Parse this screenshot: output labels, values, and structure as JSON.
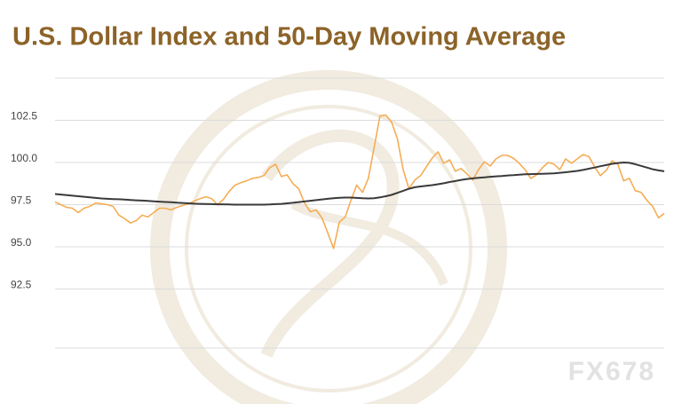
{
  "chart_data": {
    "type": "line",
    "title": "U.S. Dollar Index and 50-Day Moving Average",
    "watermark": "FX678",
    "ylim": [
      89,
      105
    ],
    "yticks": [
      92.5,
      {
        "value": 95,
        "label": "95.0"
      },
      97.5,
      {
        "value": 100,
        "label": "100.0"
      },
      102.5
    ],
    "grid": true,
    "series": [
      {
        "color": "#f5ad55",
        "values": [
          97.66,
          97.5,
          97.34,
          97.29,
          97.03,
          97.29,
          97.4,
          97.6,
          97.55,
          97.5,
          97.4,
          96.88,
          96.67,
          96.41,
          96.56,
          96.88,
          96.77,
          97.03,
          97.29,
          97.29,
          97.19,
          97.34,
          97.45,
          97.55,
          97.71,
          97.86,
          97.97,
          97.86,
          97.5,
          97.81,
          98.28,
          98.65,
          98.8,
          98.91,
          99.06,
          99.11,
          99.22,
          99.69,
          99.9,
          99.17,
          99.27,
          98.75,
          98.44,
          97.6,
          97.08,
          97.19,
          96.72,
          95.83,
          94.9,
          96.46,
          96.77,
          97.76,
          98.65,
          98.23,
          99.06,
          100.89,
          102.76,
          102.81,
          102.4,
          101.41,
          99.58,
          98.44,
          98.96,
          99.22,
          99.74,
          100.26,
          100.63,
          99.95,
          100.16,
          99.48,
          99.64,
          99.32,
          98.96,
          99.58,
          100.05,
          99.79,
          100.21,
          100.42,
          100.42,
          100.26,
          99.95,
          99.58,
          99.06,
          99.27,
          99.69,
          100.0,
          99.9,
          99.58,
          100.21,
          99.95,
          100.21,
          100.47,
          100.36,
          99.74,
          99.22,
          99.53,
          100.1,
          99.9,
          98.91,
          99.06,
          98.33,
          98.23,
          97.76,
          97.4,
          96.72,
          96.98
        ]
      },
      {
        "color": "#3a3a3a",
        "values": [
          98.13,
          98.1,
          98.07,
          98.03,
          98.0,
          97.97,
          97.93,
          97.9,
          97.87,
          97.85,
          97.83,
          97.82,
          97.8,
          97.78,
          97.76,
          97.74,
          97.72,
          97.7,
          97.68,
          97.66,
          97.64,
          97.62,
          97.6,
          97.58,
          97.56,
          97.55,
          97.54,
          97.53,
          97.52,
          97.52,
          97.51,
          97.5,
          97.5,
          97.5,
          97.5,
          97.5,
          97.5,
          97.51,
          97.53,
          97.55,
          97.58,
          97.61,
          97.65,
          97.69,
          97.73,
          97.77,
          97.81,
          97.85,
          97.88,
          97.91,
          97.92,
          97.92,
          97.9,
          97.88,
          97.87,
          97.88,
          97.93,
          98.0,
          98.08,
          98.2,
          98.32,
          98.44,
          98.53,
          98.58,
          98.62,
          98.66,
          98.71,
          98.77,
          98.84,
          98.9,
          98.97,
          99.02,
          99.06,
          99.09,
          99.12,
          99.15,
          99.18,
          99.2,
          99.23,
          99.25,
          99.28,
          99.3,
          99.31,
          99.32,
          99.33,
          99.34,
          99.36,
          99.39,
          99.42,
          99.46,
          99.5,
          99.56,
          99.63,
          99.7,
          99.78,
          99.85,
          99.92,
          99.97,
          100.0,
          99.98,
          99.9,
          99.8,
          99.7,
          99.6,
          99.53,
          99.48
        ]
      }
    ]
  }
}
